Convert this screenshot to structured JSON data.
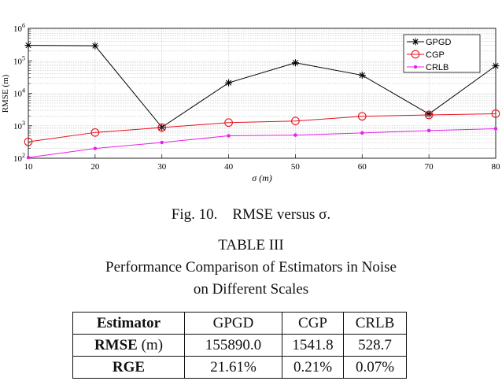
{
  "chart_data": {
    "type": "line",
    "xlabel": "σ (m)",
    "ylabel": "RMSE (m)",
    "x": [
      10,
      20,
      30,
      40,
      50,
      60,
      70,
      80
    ],
    "xlim": [
      10,
      80
    ],
    "ylim": [
      100,
      1000000
    ],
    "yscale": "log",
    "xticks": [
      "10",
      "20",
      "30",
      "40",
      "50",
      "60",
      "70",
      "80"
    ],
    "ytick_exponents": [
      "2",
      "3",
      "4",
      "5",
      "6"
    ],
    "grid": true,
    "legend_position": "top-right",
    "series": [
      {
        "name": "GPGD",
        "color": "#000000",
        "marker": "asterisk",
        "values": [
          300000,
          290000,
          900,
          21000,
          87000,
          36000,
          2300,
          70000
        ]
      },
      {
        "name": "CGP",
        "color": "#e8101c",
        "marker": "circle",
        "values": [
          320,
          620,
          880,
          1250,
          1400,
          1950,
          2150,
          2350
        ]
      },
      {
        "name": "CRLB",
        "color": "#e820e8",
        "marker": "dot",
        "values": [
          105,
          200,
          305,
          490,
          515,
          600,
          710,
          810
        ]
      }
    ]
  },
  "figure": {
    "caption": "Fig. 10.    RMSE versus σ."
  },
  "table": {
    "label": "TABLE III",
    "title_line1": "Performance Comparison of Estimators in Noise",
    "title_line2": "on Different Scales",
    "headers": [
      "Estimator",
      "GPGD",
      "CGP",
      "CRLB"
    ],
    "rows": [
      {
        "label": "RMSE",
        "unit": "(m)",
        "values": [
          "155890.0",
          "1541.8",
          "528.7"
        ]
      },
      {
        "label": "RGE",
        "unit": "",
        "values": [
          "21.61%",
          "0.21%",
          "0.07%"
        ]
      }
    ]
  }
}
